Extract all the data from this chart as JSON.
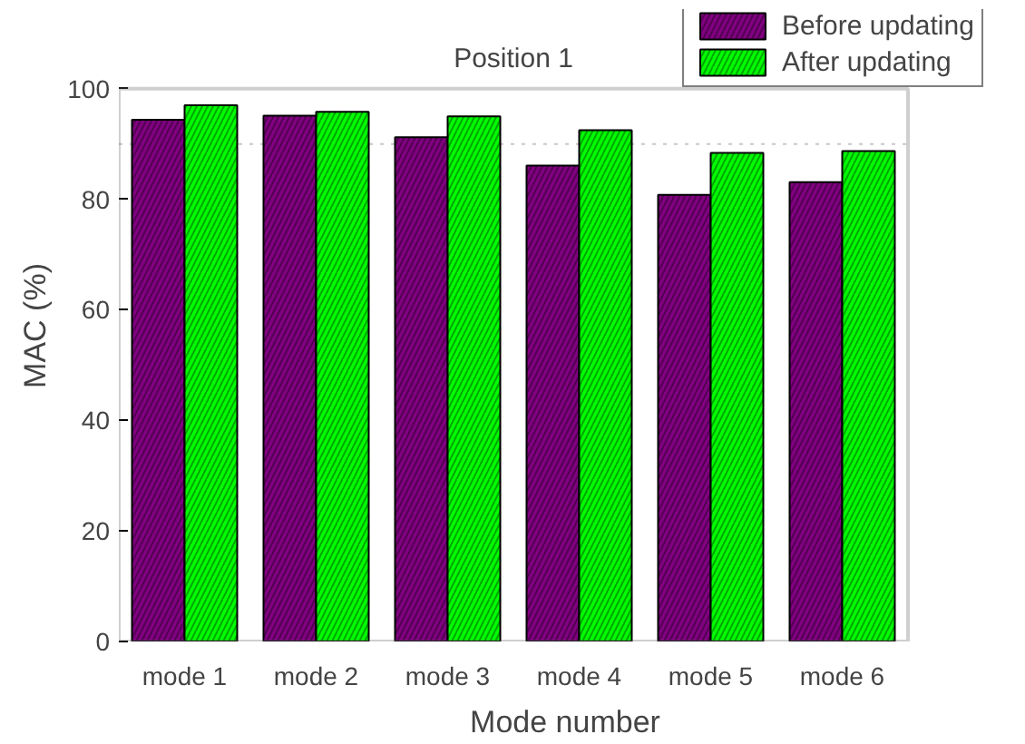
{
  "chart_data": {
    "type": "bar",
    "title": "Position 1",
    "xlabel": "Mode number",
    "ylabel": "MAC (%)",
    "categories": [
      "mode 1",
      "mode 2",
      "mode 3",
      "mode 4",
      "mode 5",
      "mode 6"
    ],
    "series": [
      {
        "name": "Before updating",
        "color": "#800080",
        "values": [
          94.4,
          95.1,
          91.2,
          86.1,
          80.8,
          83.1
        ]
      },
      {
        "name": "After updating",
        "color": "#00ff00",
        "values": [
          97.0,
          95.8,
          95.0,
          92.5,
          88.4,
          88.7
        ]
      }
    ],
    "ylim": [
      0,
      100
    ],
    "yticks": [
      0,
      20,
      40,
      60,
      80,
      100
    ],
    "ref_lines": [
      {
        "axis": "y",
        "value": 90,
        "label": null,
        "color": "#c8c8c8",
        "line_style": "dotted"
      }
    ],
    "legend": "top right"
  }
}
